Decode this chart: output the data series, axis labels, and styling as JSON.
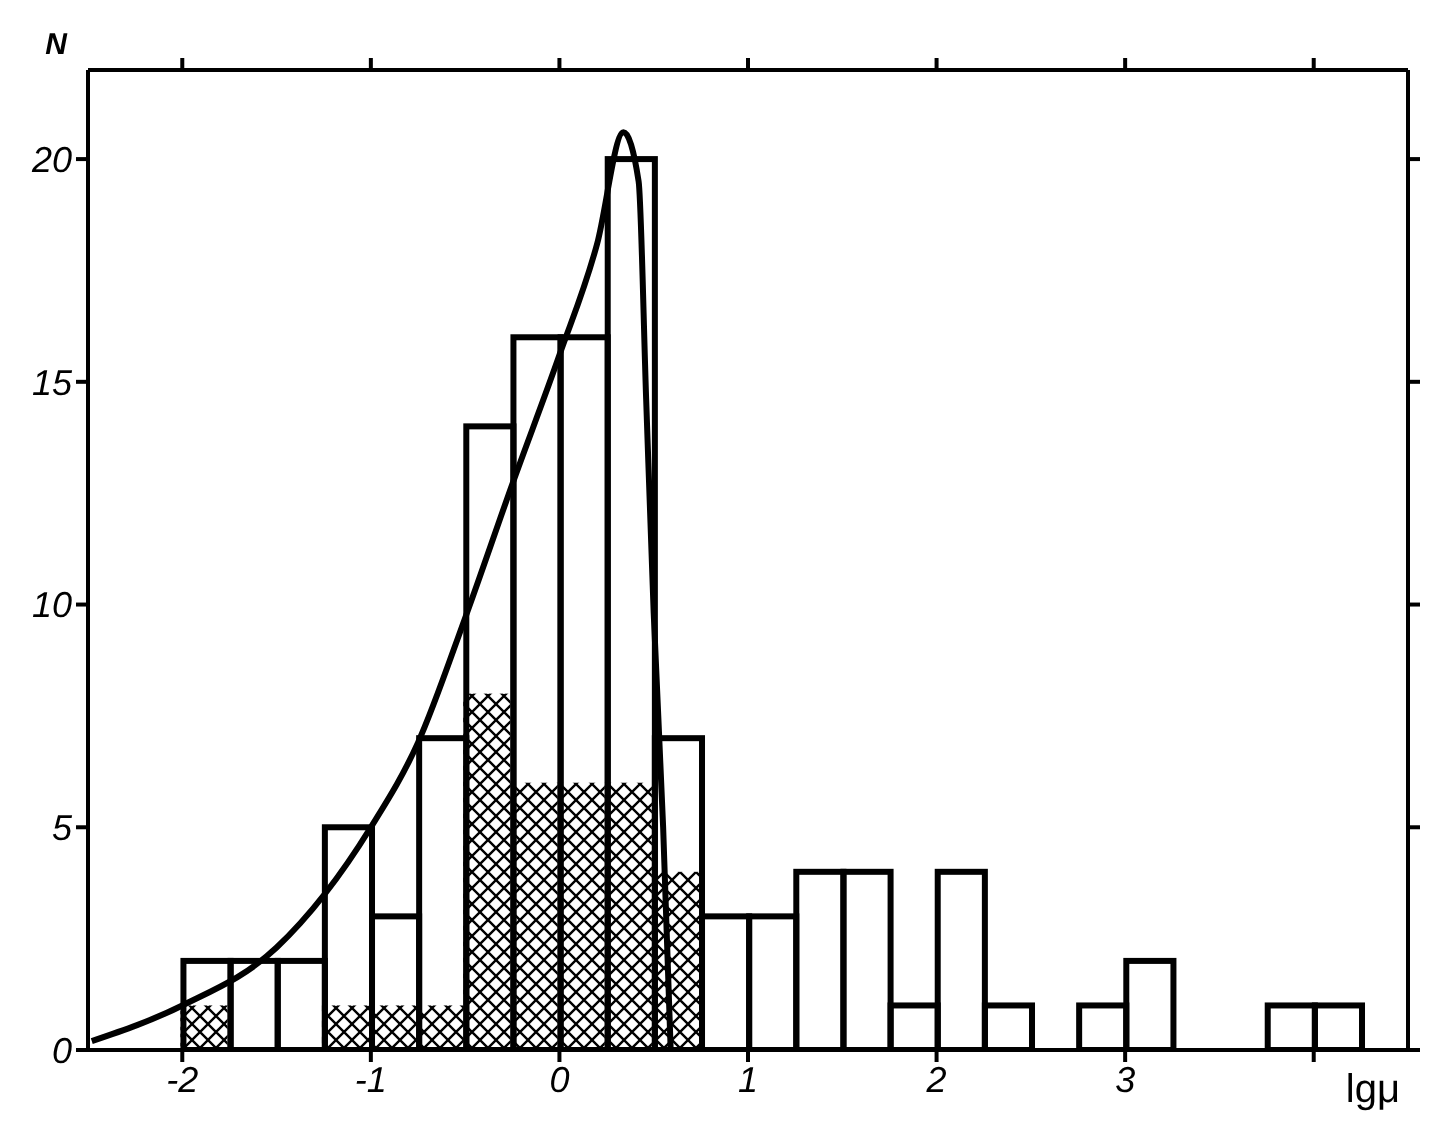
{
  "chart_data": {
    "type": "histogram",
    "xlabel": "lgμ",
    "ylabel": "N",
    "bins": [
      -2,
      -1.75,
      -1.5,
      -1.25,
      -1,
      -0.75,
      -0.5,
      -0.25,
      0,
      0.25,
      0.5,
      0.75,
      1,
      1.25,
      1.5,
      1.75,
      2,
      2.25,
      2.5,
      2.75,
      3,
      3.25,
      3.5,
      3.75,
      4,
      4.25
    ],
    "series": [
      {
        "color": "#000000",
        "values": [
          2,
          2,
          2,
          5,
          3,
          7,
          14,
          16,
          16,
          20,
          7,
          3,
          3,
          4,
          4,
          1,
          4,
          1,
          0,
          1,
          2,
          0,
          0,
          1,
          1
        ]
      },
      {
        "color": "#000000",
        "values": [
          1,
          0,
          0,
          1,
          1,
          1,
          8,
          6,
          6,
          6,
          4,
          0,
          0,
          0,
          0,
          0,
          0,
          0,
          0,
          0,
          0,
          0,
          0,
          0,
          0
        ]
      },
      {
        "type": "line",
        "color": "#000000",
        "x": [
          -2.48,
          -2,
          -1.5,
          -1,
          -0.75,
          -0.5,
          -0.25,
          0,
          0.2,
          0.34,
          0.42,
          0.46,
          0.5,
          0.55,
          0.59
        ],
        "values": [
          0.2,
          1,
          2.3,
          5,
          6.9,
          9.7,
          12.7,
          15.6,
          18.1,
          20.6,
          19.5,
          14.6,
          9.8,
          5,
          0
        ]
      }
    ],
    "xlim": [
      -2.5,
      4.5
    ],
    "xticks": [
      -2,
      -1,
      0,
      1,
      2,
      3,
      {
        "value": 4,
        "label": null
      }
    ],
    "ylim": [
      0,
      22
    ],
    "yticks": [
      0,
      5,
      10,
      15,
      20
    ]
  }
}
